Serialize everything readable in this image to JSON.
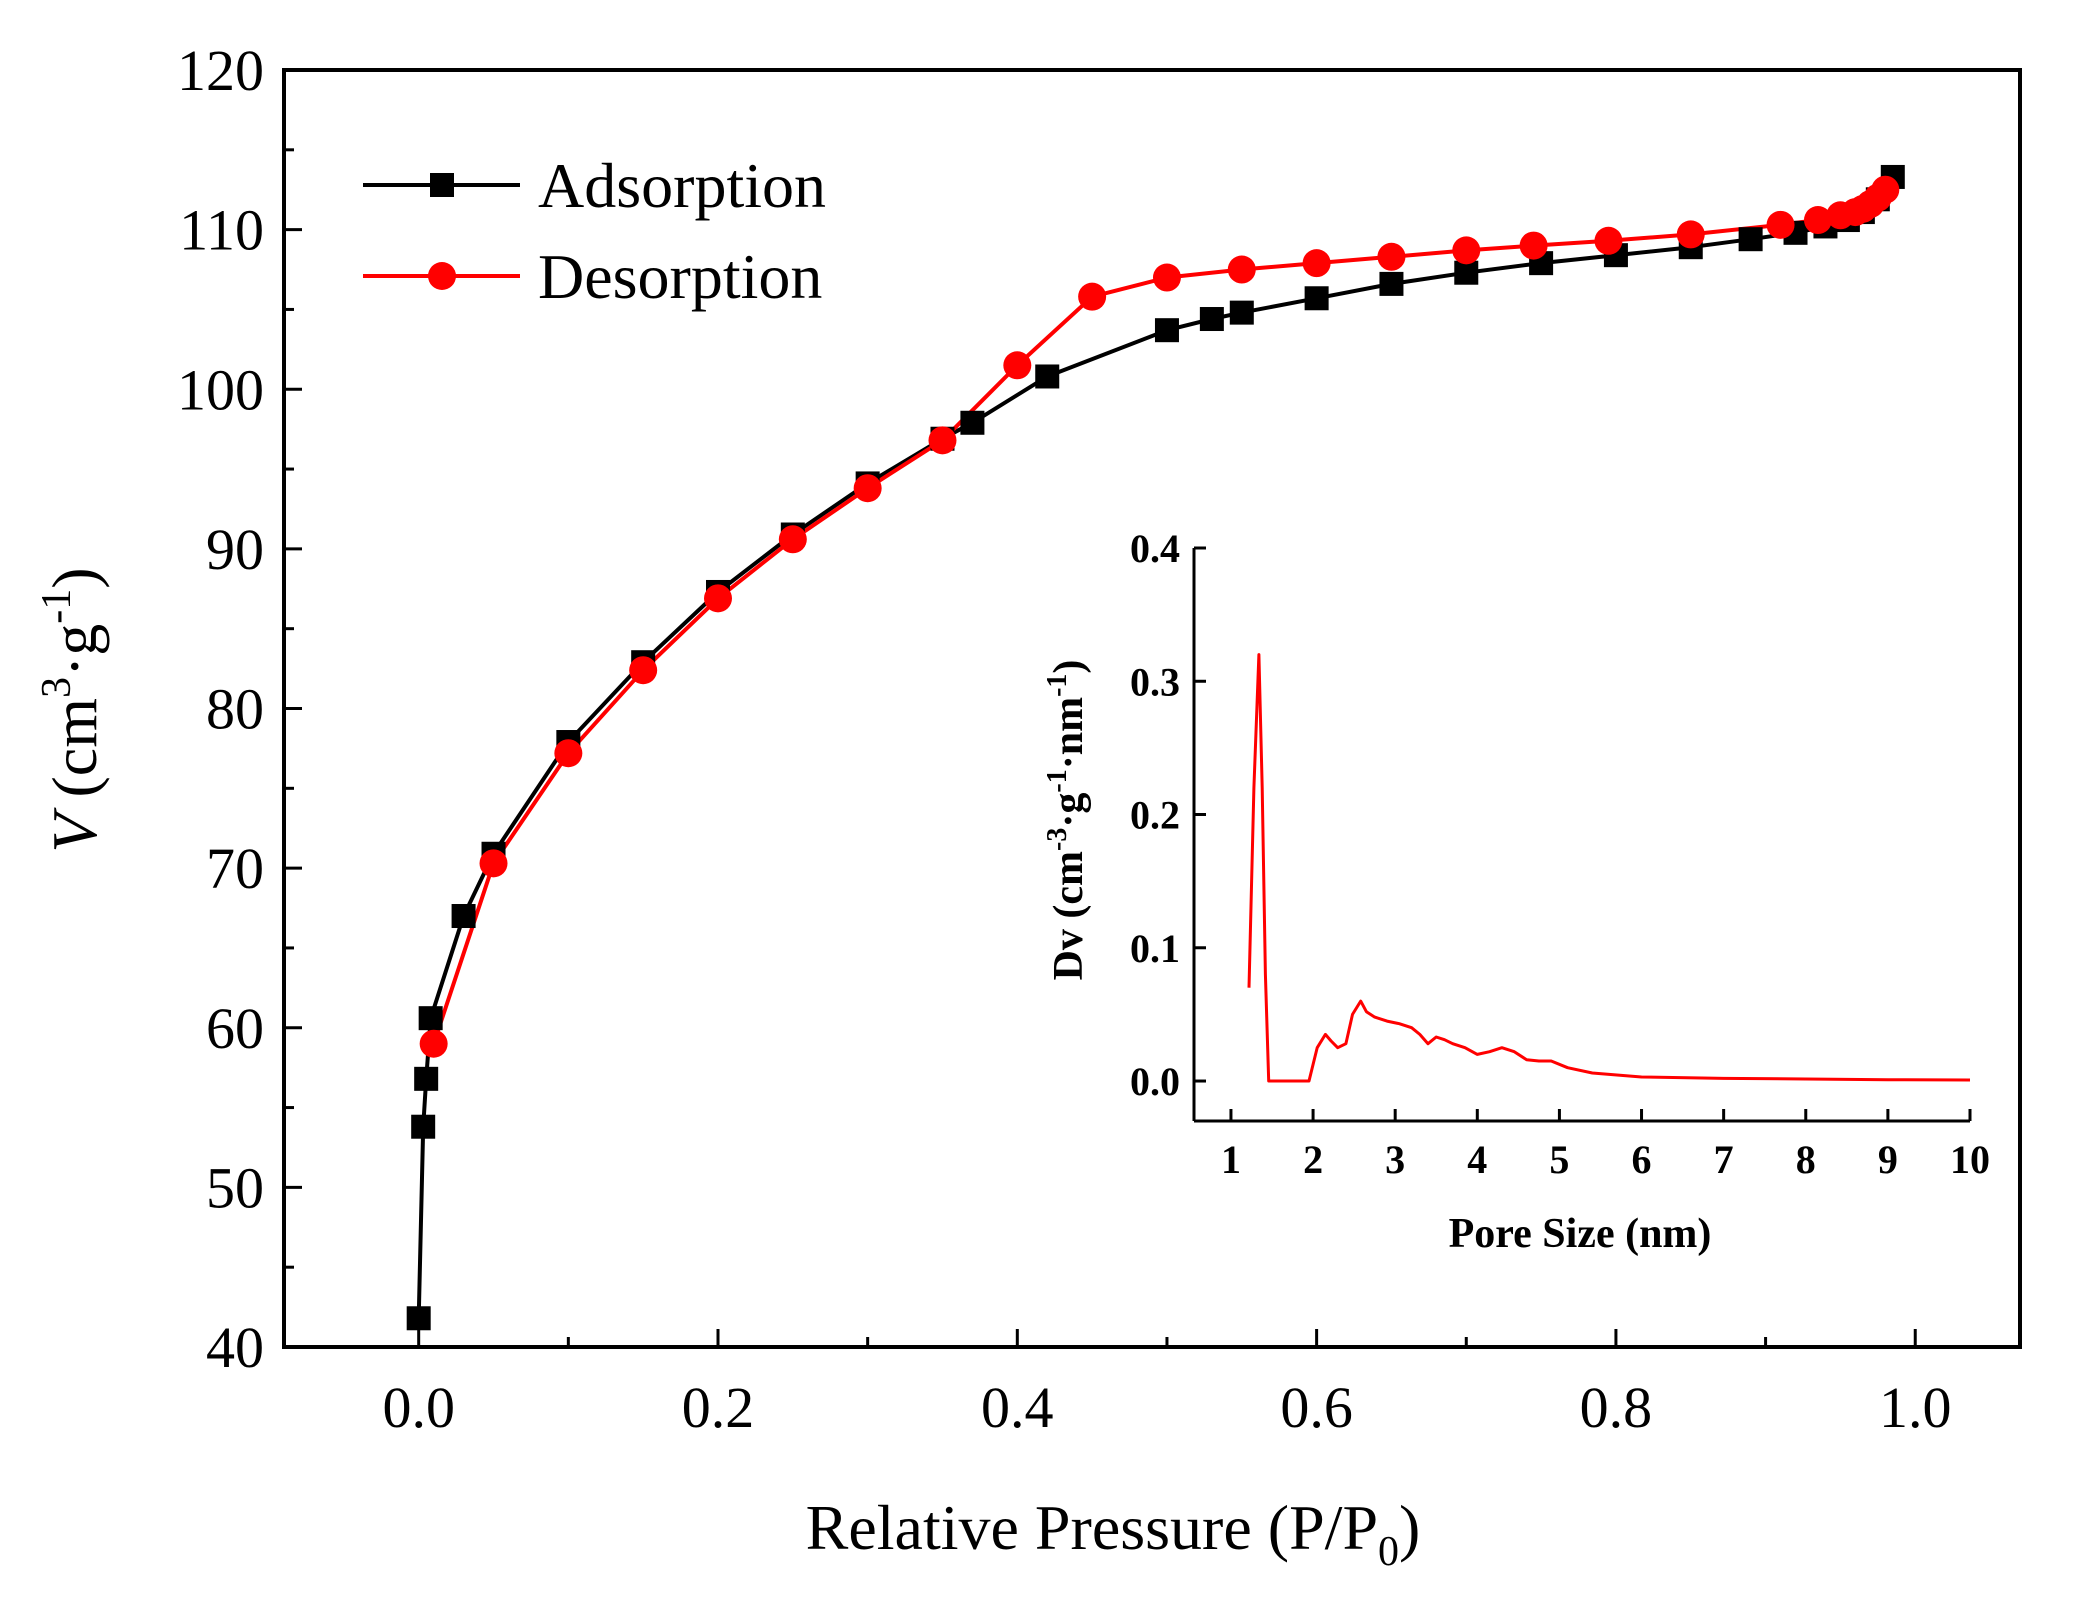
{
  "chart_data": [
    {
      "type": "line",
      "role": "main",
      "title": "",
      "xlabel": {
        "text": "Relative Pressure (P/P",
        "sub": "0",
        "close": ")"
      },
      "ylabel": {
        "italic": "V",
        "pre": " (cm",
        "sup1": "3",
        "mid": "·g",
        "sup2": "-1",
        "post": ")"
      },
      "xlim": [
        -0.09,
        1.07
      ],
      "ylim": [
        40,
        120
      ],
      "xticks": [
        0.0,
        0.2,
        0.4,
        0.6,
        0.8,
        1.0
      ],
      "xtick_labels": [
        "0.0",
        "0.2",
        "0.4",
        "0.6",
        "0.8",
        "1.0"
      ],
      "yticks": [
        40,
        50,
        60,
        70,
        80,
        90,
        100,
        110,
        120
      ],
      "ytick_labels": [
        "40",
        "50",
        "60",
        "70",
        "80",
        "90",
        "100",
        "110",
        "120"
      ],
      "legend_position": "top-left",
      "series": [
        {
          "name": "Adsorption",
          "color": "#000000",
          "marker": "square",
          "x": [
            0.0,
            0.003,
            0.005,
            0.008,
            0.03,
            0.05,
            0.1,
            0.15,
            0.2,
            0.25,
            0.3,
            0.35,
            0.37,
            0.42,
            0.5,
            0.53,
            0.55,
            0.6,
            0.65,
            0.7,
            0.75,
            0.8,
            0.85,
            0.89,
            0.92,
            0.94,
            0.955,
            0.965,
            0.975,
            0.985
          ],
          "y": [
            41.8,
            53.8,
            56.8,
            60.6,
            67.0,
            70.9,
            77.9,
            82.9,
            87.3,
            90.9,
            94.1,
            96.9,
            97.9,
            100.8,
            103.7,
            104.4,
            104.8,
            105.7,
            106.6,
            107.3,
            107.9,
            108.4,
            108.9,
            109.4,
            109.8,
            110.2,
            110.6,
            111.1,
            111.9,
            113.3
          ]
        },
        {
          "name": "Desorption",
          "color": "#ff0000",
          "marker": "circle",
          "x": [
            0.01,
            0.05,
            0.1,
            0.15,
            0.2,
            0.25,
            0.3,
            0.35,
            0.4,
            0.45,
            0.5,
            0.55,
            0.6,
            0.65,
            0.7,
            0.745,
            0.795,
            0.85,
            0.91,
            0.935,
            0.95,
            0.96,
            0.965,
            0.97,
            0.975,
            0.98
          ],
          "y": [
            59.0,
            70.3,
            77.2,
            82.4,
            86.9,
            90.6,
            93.8,
            96.8,
            101.5,
            105.8,
            107.0,
            107.5,
            107.9,
            108.3,
            108.7,
            109.0,
            109.3,
            109.7,
            110.3,
            110.6,
            110.9,
            111.1,
            111.3,
            111.6,
            112.0,
            112.5
          ]
        }
      ]
    },
    {
      "type": "line",
      "role": "inset",
      "title": "",
      "xlabel": "Pore Size (nm)",
      "ylabel": {
        "pre": "Dv (cm",
        "sup1": "-3",
        "mid": "·g",
        "sup2": "-1",
        "mid2": "·nm",
        "sup3": "-1",
        "post": ")"
      },
      "xlim": [
        0.55,
        10
      ],
      "ylim": [
        -0.03,
        0.4
      ],
      "xticks": [
        1,
        2,
        3,
        4,
        5,
        6,
        7,
        8,
        9,
        10
      ],
      "xtick_labels": [
        "1",
        "2",
        "3",
        "4",
        "5",
        "6",
        "7",
        "8",
        "9",
        "10"
      ],
      "yticks": [
        0.0,
        0.1,
        0.2,
        0.3,
        0.4
      ],
      "ytick_labels": [
        "0.0",
        "0.1",
        "0.2",
        "0.3",
        "0.4"
      ],
      "series": [
        {
          "name": "Dv",
          "color": "#ff0000",
          "x": [
            1.22,
            1.28,
            1.34,
            1.38,
            1.42,
            1.46,
            1.5,
            1.6,
            1.8,
            1.95,
            2.05,
            2.15,
            2.22,
            2.3,
            2.4,
            2.48,
            2.58,
            2.65,
            2.75,
            2.9,
            3.05,
            3.2,
            3.3,
            3.4,
            3.5,
            3.6,
            3.7,
            3.85,
            4.0,
            4.15,
            4.3,
            4.45,
            4.6,
            4.75,
            4.9,
            5.1,
            5.4,
            6.0,
            7.0,
            8.0,
            9.0,
            10.0
          ],
          "y": [
            0.07,
            0.22,
            0.32,
            0.22,
            0.08,
            0.0,
            0.0,
            0.0,
            0.0,
            0.0,
            0.025,
            0.035,
            0.03,
            0.025,
            0.028,
            0.05,
            0.06,
            0.052,
            0.048,
            0.045,
            0.043,
            0.04,
            0.035,
            0.028,
            0.033,
            0.031,
            0.028,
            0.025,
            0.02,
            0.022,
            0.025,
            0.022,
            0.016,
            0.015,
            0.015,
            0.01,
            0.006,
            0.003,
            0.002,
            0.0015,
            0.001,
            0.0008
          ]
        }
      ]
    }
  ]
}
